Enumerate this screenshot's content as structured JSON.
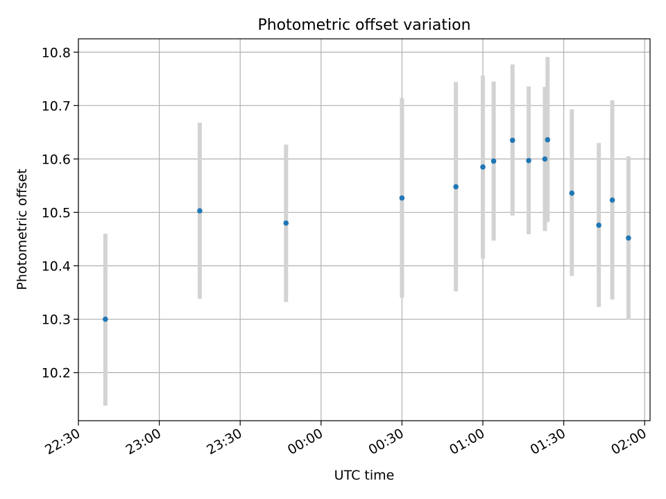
{
  "chart_data": {
    "type": "scatter",
    "title": "Photometric offset variation",
    "xlabel": "UTC time",
    "ylabel": "Photometric offset",
    "grid": true,
    "legend": "none",
    "x_axis": {
      "kind": "time",
      "range": [
        "22:30",
        "02:02"
      ],
      "ticks": [
        "22:30",
        "23:00",
        "23:30",
        "00:00",
        "00:30",
        "01:00",
        "01:30",
        "02:00"
      ]
    },
    "y_axis": {
      "range": [
        10.11,
        10.825
      ],
      "ticks": [
        "10.2",
        "10.3",
        "10.4",
        "10.5",
        "10.6",
        "10.7",
        "10.8"
      ]
    },
    "colors": {
      "points": "#1f77b4",
      "errorbars": "#d3d3d3",
      "grid": "#b0b0b0"
    },
    "points": [
      {
        "time": "22:40",
        "y": 10.3,
        "ylo": 10.138,
        "yhi": 10.46
      },
      {
        "time": "23:15",
        "y": 10.503,
        "ylo": 10.338,
        "yhi": 10.668
      },
      {
        "time": "23:47",
        "y": 10.48,
        "ylo": 10.332,
        "yhi": 10.627
      },
      {
        "time": "00:30",
        "y": 10.527,
        "ylo": 10.34,
        "yhi": 10.714
      },
      {
        "time": "00:50",
        "y": 10.548,
        "ylo": 10.352,
        "yhi": 10.744
      },
      {
        "time": "01:00",
        "y": 10.585,
        "ylo": 10.413,
        "yhi": 10.756
      },
      {
        "time": "01:04",
        "y": 10.596,
        "ylo": 10.447,
        "yhi": 10.745
      },
      {
        "time": "01:11",
        "y": 10.635,
        "ylo": 10.494,
        "yhi": 10.777
      },
      {
        "time": "01:17",
        "y": 10.597,
        "ylo": 10.459,
        "yhi": 10.736
      },
      {
        "time": "01:23",
        "y": 10.6,
        "ylo": 10.465,
        "yhi": 10.735
      },
      {
        "time": "01:24",
        "y": 10.636,
        "ylo": 10.482,
        "yhi": 10.791
      },
      {
        "time": "01:33",
        "y": 10.536,
        "ylo": 10.381,
        "yhi": 10.693
      },
      {
        "time": "01:43",
        "y": 10.476,
        "ylo": 10.323,
        "yhi": 10.63
      },
      {
        "time": "01:48",
        "y": 10.523,
        "ylo": 10.337,
        "yhi": 10.71
      },
      {
        "time": "01:54",
        "y": 10.452,
        "ylo": 10.299,
        "yhi": 10.605
      }
    ]
  }
}
